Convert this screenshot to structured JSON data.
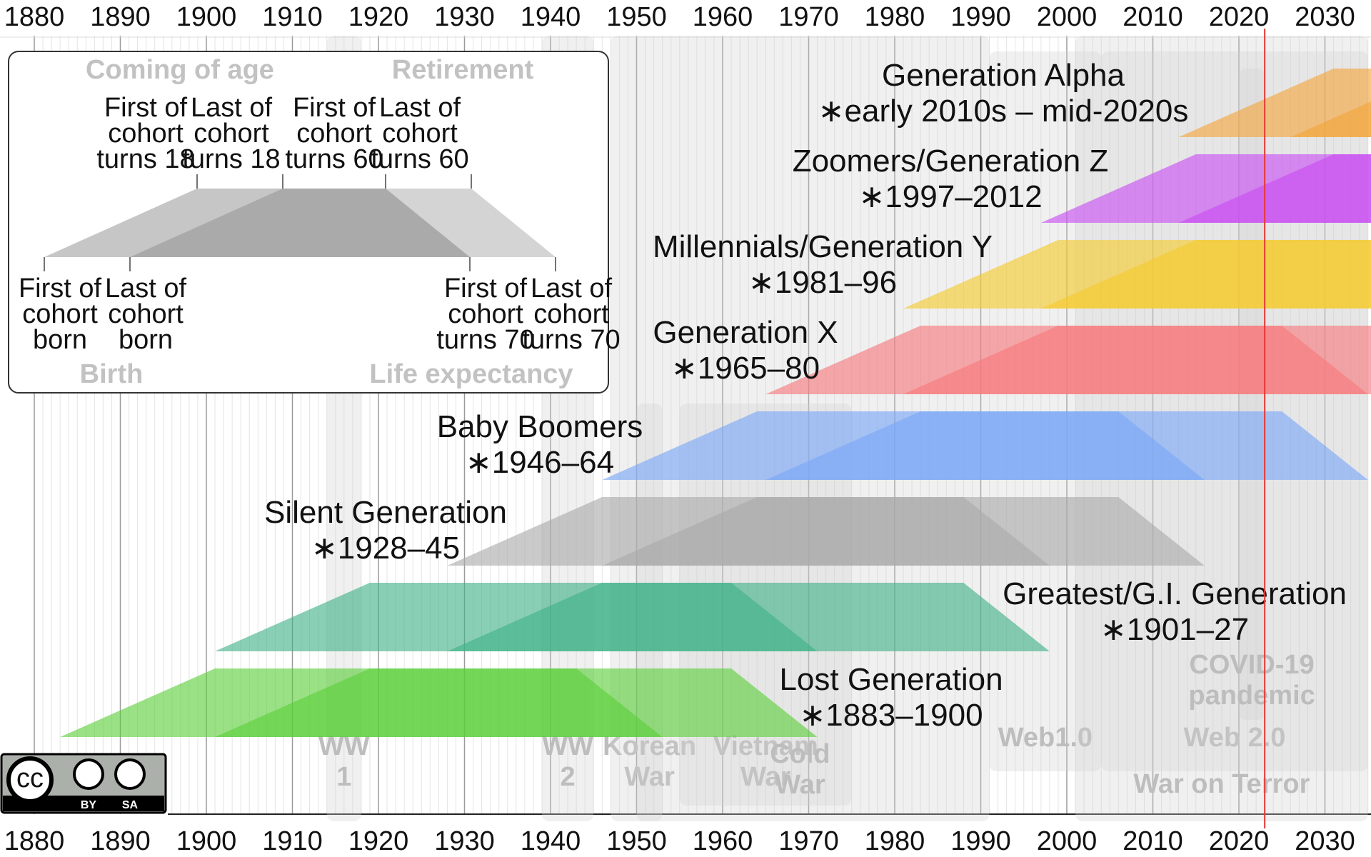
{
  "axis": {
    "start_year": 1880,
    "end_year": 2035,
    "tick_labels": [
      "1880",
      "1890",
      "1900",
      "1910",
      "1920",
      "1930",
      "1940",
      "1950",
      "1960",
      "1970",
      "1980",
      "1990",
      "2000",
      "2010",
      "2020",
      "2030"
    ],
    "current_year_marker": 2023,
    "marker_color": "#e53935"
  },
  "events": [
    {
      "lines": [
        "WW",
        "1"
      ],
      "start": 1914,
      "end": 1918
    },
    {
      "lines": [
        "WW",
        "2"
      ],
      "start": 1939,
      "end": 1945
    },
    {
      "lines": [
        "Korean",
        "War"
      ],
      "start": 1950,
      "end": 1953
    },
    {
      "lines": [
        "Vietnam",
        "War"
      ],
      "start": 1955,
      "end": 1975
    },
    {
      "lines": [
        "Cold",
        "War"
      ],
      "start": 1947,
      "end": 1991
    },
    {
      "lines": [
        "Web1.0"
      ],
      "start": 1991,
      "end": 2004
    },
    {
      "lines": [
        "Web 2.0"
      ],
      "start": 2004,
      "end": 2035
    },
    {
      "lines": [
        "War on Terror"
      ],
      "start": 2001,
      "end": 2035
    },
    {
      "lines": [
        "COVID-19",
        "pandemic"
      ],
      "start": 2020,
      "end": 2023
    }
  ],
  "generations": [
    {
      "name": "Generation Alpha",
      "years": "∗early 2010s – mid-2020s",
      "start": 2013,
      "end": 2025,
      "color": "#f4a53a"
    },
    {
      "name": "Zoomers/Generation Z",
      "years": "∗1997–2012",
      "start": 1997,
      "end": 2012,
      "color": "#c84cf2"
    },
    {
      "name": "Millennials/Generation Y",
      "years": "∗1981–96",
      "start": 1981,
      "end": 1996,
      "color": "#f6c92b"
    },
    {
      "name": "Generation X",
      "years": "∗1965–80",
      "start": 1965,
      "end": 1980,
      "color": "#f7787a"
    },
    {
      "name": "Baby Boomers",
      "years": "∗1946–64",
      "start": 1946,
      "end": 1964,
      "color": "#79a6f7"
    },
    {
      "name": "Silent Generation",
      "years": "∗1928–45",
      "start": 1928,
      "end": 1945,
      "color": "#a9a9a9"
    },
    {
      "name": "Greatest/G.I. Generation",
      "years": "∗1901–27",
      "start": 1901,
      "end": 1927,
      "color": "#3fb288"
    },
    {
      "name": "Lost Generation",
      "years": "∗1883–1900",
      "start": 1883,
      "end": 1900,
      "color": "#5ccf3a"
    }
  ],
  "legend": {
    "coming_of_age": "Coming of age",
    "retirement": "Retirement",
    "birth": "Birth",
    "life_expectancy": "Life expectancy",
    "top_labels": [
      [
        "First of",
        "cohort",
        "turns 18"
      ],
      [
        "Last of",
        "cohort",
        "turns 18"
      ],
      [
        "First of",
        "cohort",
        "turns 60"
      ],
      [
        "Last of",
        "cohort",
        "turns 60"
      ]
    ],
    "bottom_labels": [
      [
        "First of",
        "cohort",
        "born"
      ],
      [
        "Last of",
        "cohort",
        "born"
      ],
      [
        "First of",
        "cohort",
        "turns 70"
      ],
      [
        "Last of",
        "cohort",
        "turns 70"
      ]
    ]
  },
  "license": {
    "by": "BY",
    "sa": "SA",
    "cc": "cc"
  }
}
